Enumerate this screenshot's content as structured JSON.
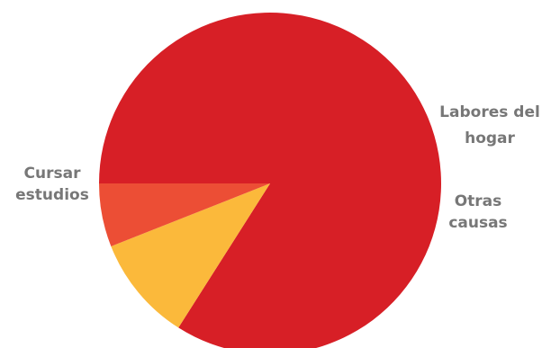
{
  "chart_data": {
    "type": "pie",
    "start_angle_deg": 180,
    "direction": "clockwise",
    "slices": [
      {
        "label_lines": [
          "Cursar",
          "estudios"
        ],
        "value": 84,
        "color": "#d71f26",
        "label_side": "left"
      },
      {
        "label_lines": [
          "Labores del",
          "hogar"
        ],
        "value": 10,
        "color": "#fbb93b",
        "label_side": "right"
      },
      {
        "label_lines": [
          "Otras",
          "causas"
        ],
        "value": 6,
        "color": "#ec4e35",
        "label_side": "right"
      }
    ],
    "label_color": "#777777"
  }
}
